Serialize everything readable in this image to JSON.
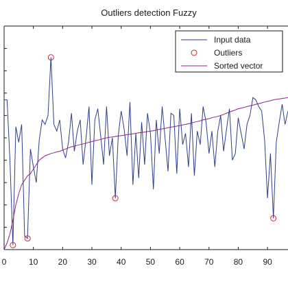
{
  "chart_data": {
    "type": "line",
    "title": "Outliers detection Fuzzy",
    "xlabel": "",
    "ylabel": "",
    "xlim": [
      0,
      97
    ],
    "ylim": [
      0,
      100
    ],
    "x_ticks": [
      0,
      10,
      20,
      30,
      40,
      50,
      60,
      70,
      80,
      90
    ],
    "grid": false,
    "legend_position": "top-right",
    "series": [
      {
        "name": "Input data",
        "color": "#2e3c8c",
        "style": "line",
        "x": [
          0,
          1,
          2,
          3,
          4,
          5,
          6,
          7,
          8,
          9,
          10,
          11,
          12,
          13,
          14,
          15,
          16,
          17,
          18,
          19,
          20,
          21,
          22,
          23,
          24,
          25,
          26,
          27,
          28,
          29,
          30,
          31,
          32,
          33,
          34,
          35,
          36,
          37,
          38,
          39,
          40,
          41,
          42,
          43,
          44,
          45,
          46,
          47,
          48,
          49,
          50,
          51,
          52,
          53,
          54,
          55,
          56,
          57,
          58,
          59,
          60,
          61,
          62,
          63,
          64,
          65,
          66,
          67,
          68,
          69,
          70,
          71,
          72,
          73,
          74,
          75,
          76,
          77,
          78,
          79,
          80,
          81,
          82,
          83,
          84,
          85,
          86,
          87,
          88,
          89,
          90,
          91,
          92,
          93,
          94,
          95,
          96,
          97
        ],
        "y": [
          67,
          67,
          40,
          2,
          55,
          48,
          56,
          6,
          5,
          45,
          37,
          30,
          49,
          58,
          56,
          60,
          86,
          56,
          53,
          58,
          45,
          41,
          48,
          61,
          44,
          53,
          58,
          38,
          50,
          64,
          29,
          58,
          63,
          51,
          38,
          64,
          42,
          50,
          23,
          51,
          62,
          54,
          42,
          66,
          29,
          52,
          32,
          57,
          38,
          61,
          52,
          27,
          58,
          43,
          64,
          50,
          35,
          61,
          60,
          34,
          63,
          47,
          52,
          37,
          61,
          33,
          53,
          47,
          64,
          57,
          43,
          53,
          37,
          53,
          60,
          44,
          54,
          63,
          40,
          43,
          59,
          52,
          45,
          56,
          60,
          68,
          67,
          64,
          62,
          49,
          23,
          43,
          14,
          48,
          57,
          65,
          56,
          62
        ]
      },
      {
        "name": "Outliers",
        "color": "#c8282d",
        "style": "marker",
        "x": [
          3,
          8,
          16,
          38,
          92
        ],
        "y": [
          2,
          5,
          86,
          23,
          14
        ]
      },
      {
        "name": "Sorted vector",
        "color": "#8a1f8a",
        "style": "line",
        "x": [
          0,
          1,
          2,
          3,
          4,
          5,
          6,
          7,
          8,
          9,
          10,
          11,
          12,
          13,
          14,
          15,
          16,
          17,
          18,
          19,
          20,
          21,
          22,
          23,
          24,
          25,
          26,
          27,
          28,
          29,
          30,
          31,
          32,
          33,
          34,
          35,
          36,
          37,
          38,
          39,
          40,
          41,
          42,
          43,
          44,
          45,
          46,
          47,
          48,
          49,
          50,
          51,
          52,
          53,
          54,
          55,
          56,
          57,
          58,
          59,
          60,
          61,
          62,
          63,
          64,
          65,
          66,
          67,
          68,
          69,
          70,
          71,
          72,
          73,
          74,
          75,
          76,
          77,
          78,
          79,
          80,
          81,
          82,
          83,
          84,
          85,
          86,
          87,
          88,
          89,
          90,
          91,
          92,
          93,
          94,
          95,
          96,
          97
        ],
        "y": [
          0,
          3,
          7,
          13,
          20,
          25,
          29,
          31,
          33,
          34,
          36,
          38,
          40,
          41,
          42,
          42.5,
          43,
          43.3,
          43.7,
          44,
          44.5,
          45,
          45.5,
          46,
          46.3,
          46.7,
          47,
          47.3,
          47.6,
          48,
          48.3,
          48.7,
          49,
          49.3,
          49.7,
          50,
          50.2,
          50.4,
          50.6,
          50.8,
          51,
          51.2,
          51.4,
          51.6,
          51.8,
          52,
          52.2,
          52.4,
          52.6,
          52.8,
          53,
          53.2,
          53.5,
          53.8,
          54,
          54.2,
          54.5,
          54.8,
          55,
          55.2,
          55.5,
          55.8,
          56,
          56.3,
          56.6,
          57,
          57.3,
          57.6,
          58,
          58.3,
          58.6,
          59,
          59.3,
          59.6,
          60,
          60.5,
          61,
          61.5,
          62,
          62.5,
          63,
          63.3,
          63.6,
          64,
          64.3,
          64.6,
          65,
          65.3,
          65.6,
          66,
          66.3,
          66.6,
          67,
          67.2,
          67.4,
          67.6,
          67.8,
          68
        ]
      }
    ]
  }
}
